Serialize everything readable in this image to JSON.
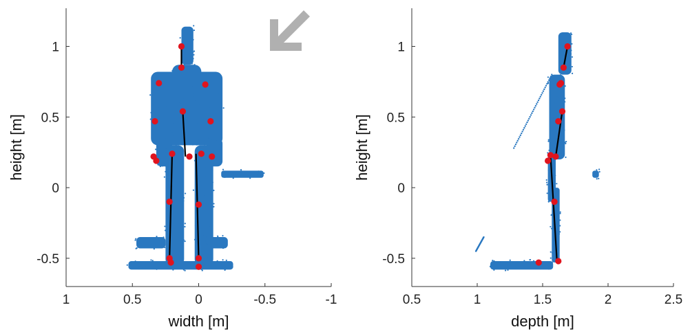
{
  "colors": {
    "points": "#2a78c0",
    "joints": "#e0141e",
    "skeleton": "#000000",
    "axis": "#333333",
    "arrow": "#b0b0b0"
  },
  "icons": {
    "direction": "arrow-down-left-icon"
  },
  "chart_data": [
    {
      "type": "scatter",
      "title": "",
      "xlabel": "width [m]",
      "ylabel": "height [m]",
      "xlim": [
        1,
        -1
      ],
      "ylim": [
        -0.7,
        1.27
      ],
      "x_reversed": true,
      "xticks": [
        1,
        0.5,
        0,
        -0.5,
        -1
      ],
      "xtick_labels": [
        "1",
        "0.5",
        "0",
        "-0.5",
        "-1"
      ],
      "yticks": [
        -0.5,
        0,
        0.5,
        1
      ],
      "ytick_labels": [
        "-0.5",
        "0",
        "0.5",
        "1"
      ],
      "grid": false,
      "legend": "none",
      "series": [
        {
          "kind": "point-cloud",
          "regions": [
            {
              "x": [
                0.2,
                -0.02
              ],
              "y": [
                0.6,
                0.87
              ]
            },
            {
              "x": [
                0.36,
                -0.18
              ],
              "y": [
                0.3,
                0.82
              ]
            },
            {
              "x": [
                0.32,
                0.2
              ],
              "y": [
                0.15,
                0.35
              ]
            },
            {
              "x": [
                -0.06,
                -0.18
              ],
              "y": [
                0.15,
                0.35
              ]
            },
            {
              "x": [
                0.25,
                0.11
              ],
              "y": [
                -0.55,
                0.3
              ]
            },
            {
              "x": [
                0.03,
                -0.11
              ],
              "y": [
                -0.55,
                0.3
              ]
            },
            {
              "x": [
                0.13,
                0.04
              ],
              "y": [
                0.87,
                1.14
              ]
            },
            {
              "x": [
                0.53,
                -0.26
              ],
              "y": [
                -0.58,
                -0.52
              ]
            },
            {
              "x": [
                0.47,
                0.25
              ],
              "y": [
                -0.43,
                -0.35
              ]
            },
            {
              "x": [
                -0.06,
                -0.22
              ],
              "y": [
                -0.43,
                -0.35
              ]
            },
            {
              "x": [
                -0.17,
                -0.49
              ],
              "y": [
                0.07,
                0.12
              ]
            }
          ]
        },
        {
          "kind": "joints",
          "x": [
            0.13,
            0.13,
            0.3,
            -0.05,
            0.12,
            0.33,
            -0.09,
            0.34,
            0.32,
            0.2,
            0.07,
            -0.02,
            -0.1,
            0.22,
            0.22,
            0.21,
            0.0,
            0.0,
            0.0
          ],
          "y": [
            1.0,
            0.85,
            0.74,
            0.73,
            0.54,
            0.47,
            0.47,
            0.22,
            0.19,
            0.24,
            0.22,
            0.24,
            0.22,
            -0.1,
            -0.5,
            -0.53,
            -0.12,
            -0.5,
            -0.56
          ]
        },
        {
          "kind": "skeleton",
          "segments": [
            [
              [
                0.13,
                1.0
              ],
              [
                0.13,
                0.85
              ]
            ],
            [
              [
                0.12,
                0.54
              ],
              [
                0.1,
                0.22
              ]
            ],
            [
              [
                0.2,
                0.24
              ],
              [
                0.22,
                -0.5
              ]
            ],
            [
              [
                0.02,
                0.24
              ],
              [
                0.0,
                -0.5
              ]
            ]
          ]
        }
      ]
    },
    {
      "type": "scatter",
      "title": "",
      "xlabel": "depth [m]",
      "ylabel": "height [m]",
      "xlim": [
        0.5,
        2.5
      ],
      "ylim": [
        -0.7,
        1.27
      ],
      "x_reversed": false,
      "xticks": [
        0.5,
        1,
        1.5,
        2,
        2.5
      ],
      "xtick_labels": [
        "0.5",
        "1",
        "1.5",
        "2",
        "2.5"
      ],
      "yticks": [
        -0.5,
        0,
        0.5,
        1
      ],
      "ytick_labels": [
        "-0.5",
        "0",
        "0.5",
        "1"
      ],
      "grid": false,
      "legend": "none",
      "series": [
        {
          "kind": "point-cloud",
          "regions": [
            {
              "x": [
                1.55,
                1.67
              ],
              "y": [
                0.2,
                0.8
              ]
            },
            {
              "x": [
                1.54,
                1.6
              ],
              "y": [
                -0.1,
                0.25
              ]
            },
            {
              "x": [
                1.57,
                1.63
              ],
              "y": [
                -0.53,
                0.0
              ]
            },
            {
              "x": [
                1.62,
                1.72
              ],
              "y": [
                0.8,
                1.1
              ]
            },
            {
              "x": [
                1.1,
                1.58
              ],
              "y": [
                -0.58,
                -0.52
              ]
            },
            {
              "x": [
                1.88,
                1.93
              ],
              "y": [
                0.07,
                0.12
              ]
            }
          ],
          "lines": [
            [
              [
                1.28,
                0.28
              ],
              [
                1.57,
                0.8
              ]
            ],
            [
              [
                0.99,
                -0.45
              ],
              [
                1.05,
                -0.35
              ]
            ]
          ]
        },
        {
          "kind": "joints",
          "x": [
            1.69,
            1.66,
            1.64,
            1.63,
            1.65,
            1.62,
            1.56,
            1.54,
            1.6,
            1.59,
            1.62,
            1.47
          ],
          "y": [
            1.0,
            0.85,
            0.74,
            0.73,
            0.54,
            0.47,
            0.23,
            0.19,
            0.22,
            -0.1,
            -0.52,
            -0.53
          ]
        },
        {
          "kind": "skeleton",
          "segments": [
            [
              [
                1.69,
                1.0
              ],
              [
                1.66,
                0.85
              ]
            ],
            [
              [
                1.65,
                0.54
              ],
              [
                1.6,
                0.22
              ]
            ],
            [
              [
                1.56,
                0.23
              ],
              [
                1.61,
                -0.53
              ]
            ]
          ]
        }
      ]
    }
  ]
}
